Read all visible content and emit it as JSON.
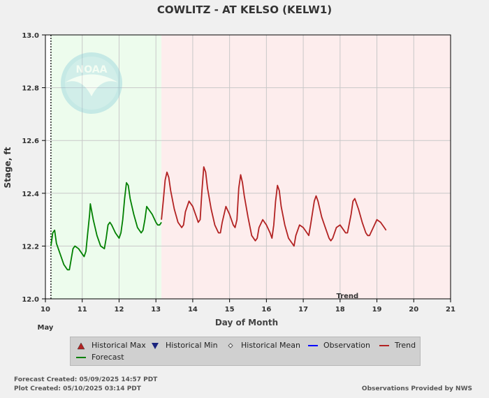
{
  "chart_data": {
    "type": "line",
    "title": "COWLITZ - AT KELSO  (KELW1)",
    "xlabel": "Day of Month",
    "ylabel": "Stage, ft",
    "month_label": "May",
    "xlim": [
      10,
      21
    ],
    "ylim": [
      12.0,
      13.0
    ],
    "x_ticks": [
      10,
      11,
      12,
      13,
      14,
      15,
      16,
      17,
      18,
      19,
      20,
      21
    ],
    "y_ticks": [
      "12.0",
      "12.2",
      "12.4",
      "12.6",
      "12.8",
      "13.0"
    ],
    "grid": true,
    "observed_region": [
      10,
      10.15
    ],
    "forecast_region": [
      10.15,
      13.15
    ],
    "trend_region": [
      13.15,
      21
    ],
    "trend_label": "Trend",
    "series": [
      {
        "name": "Forecast",
        "color": "#008000",
        "x": [
          10.15,
          10.2,
          10.25,
          10.3,
          10.4,
          10.5,
          10.6,
          10.65,
          10.7,
          10.75,
          10.8,
          10.9,
          11.0,
          11.05,
          11.1,
          11.15,
          11.2,
          11.22,
          11.3,
          11.4,
          11.5,
          11.6,
          11.65,
          11.7,
          11.75,
          11.8,
          11.9,
          12.0,
          12.05,
          12.1,
          12.15,
          12.2,
          12.25,
          12.3,
          12.4,
          12.5,
          12.6,
          12.65,
          12.7,
          12.75,
          12.8,
          12.9,
          13.0,
          13.05,
          13.1,
          13.15
        ],
        "y": [
          12.2,
          12.25,
          12.26,
          12.21,
          12.17,
          12.13,
          12.11,
          12.11,
          12.15,
          12.19,
          12.2,
          12.19,
          12.17,
          12.16,
          12.18,
          12.25,
          12.32,
          12.36,
          12.3,
          12.24,
          12.2,
          12.19,
          12.23,
          12.28,
          12.29,
          12.28,
          12.25,
          12.23,
          12.25,
          12.3,
          12.38,
          12.44,
          12.43,
          12.38,
          12.32,
          12.27,
          12.25,
          12.26,
          12.3,
          12.35,
          12.34,
          12.32,
          12.29,
          12.28,
          12.28,
          12.29
        ]
      },
      {
        "name": "Trend",
        "color": "#b22222",
        "x": [
          13.15,
          13.2,
          13.25,
          13.3,
          13.35,
          13.4,
          13.5,
          13.6,
          13.7,
          13.75,
          13.8,
          13.9,
          14.0,
          14.1,
          14.15,
          14.2,
          14.25,
          14.3,
          14.35,
          14.4,
          14.5,
          14.6,
          14.7,
          14.75,
          14.8,
          14.9,
          15.0,
          15.1,
          15.15,
          15.2,
          15.25,
          15.3,
          15.35,
          15.4,
          15.5,
          15.6,
          15.7,
          15.75,
          15.8,
          15.9,
          16.0,
          16.1,
          16.15,
          16.2,
          16.25,
          16.3,
          16.35,
          16.4,
          16.5,
          16.6,
          16.7,
          16.75,
          16.8,
          16.9,
          17.0,
          17.1,
          17.15,
          17.2,
          17.3,
          17.35,
          17.4,
          17.5,
          17.6,
          17.7,
          17.75,
          17.8,
          17.9,
          18.0,
          18.1,
          18.15,
          18.2,
          18.3,
          18.35,
          18.4,
          18.5,
          18.6,
          18.7,
          18.75,
          18.8,
          18.9,
          19.0,
          19.1,
          19.2,
          19.25
        ],
        "y": [
          12.3,
          12.37,
          12.45,
          12.48,
          12.46,
          12.41,
          12.34,
          12.29,
          12.27,
          12.28,
          12.33,
          12.37,
          12.35,
          12.31,
          12.29,
          12.3,
          12.41,
          12.5,
          12.48,
          12.42,
          12.34,
          12.28,
          12.25,
          12.25,
          12.29,
          12.35,
          12.32,
          12.28,
          12.27,
          12.3,
          12.42,
          12.47,
          12.44,
          12.39,
          12.31,
          12.24,
          12.22,
          12.23,
          12.27,
          12.3,
          12.28,
          12.25,
          12.23,
          12.28,
          12.37,
          12.43,
          12.41,
          12.35,
          12.28,
          12.23,
          12.21,
          12.2,
          12.24,
          12.28,
          12.27,
          12.25,
          12.24,
          12.28,
          12.37,
          12.39,
          12.37,
          12.31,
          12.27,
          12.23,
          12.22,
          12.23,
          12.27,
          12.28,
          12.26,
          12.25,
          12.25,
          12.32,
          12.37,
          12.38,
          12.34,
          12.29,
          12.25,
          12.24,
          12.24,
          12.27,
          12.3,
          12.29,
          12.27,
          12.26
        ]
      }
    ]
  },
  "logo": {
    "text": "NOAA"
  },
  "legend": [
    {
      "label": "Historical Max",
      "marker": "triangle-up",
      "color": "#b22222"
    },
    {
      "label": "Historical Min",
      "marker": "triangle-down",
      "color": "#1a237e"
    },
    {
      "label": "Historical Mean",
      "marker": "diamond",
      "color": "#555555"
    },
    {
      "label": "Observation",
      "marker": "line",
      "color": "#0000ff"
    },
    {
      "label": "Trend",
      "marker": "line",
      "color": "#b22222"
    },
    {
      "label": "Forecast",
      "marker": "line",
      "color": "#008000"
    }
  ],
  "footer": {
    "forecast_created": "Forecast Created: 05/09/2025 14:57 PDT",
    "plot_created": "Plot Created: 05/10/2025 03:14 PDT",
    "credit": "Observations Provided by NWS"
  }
}
